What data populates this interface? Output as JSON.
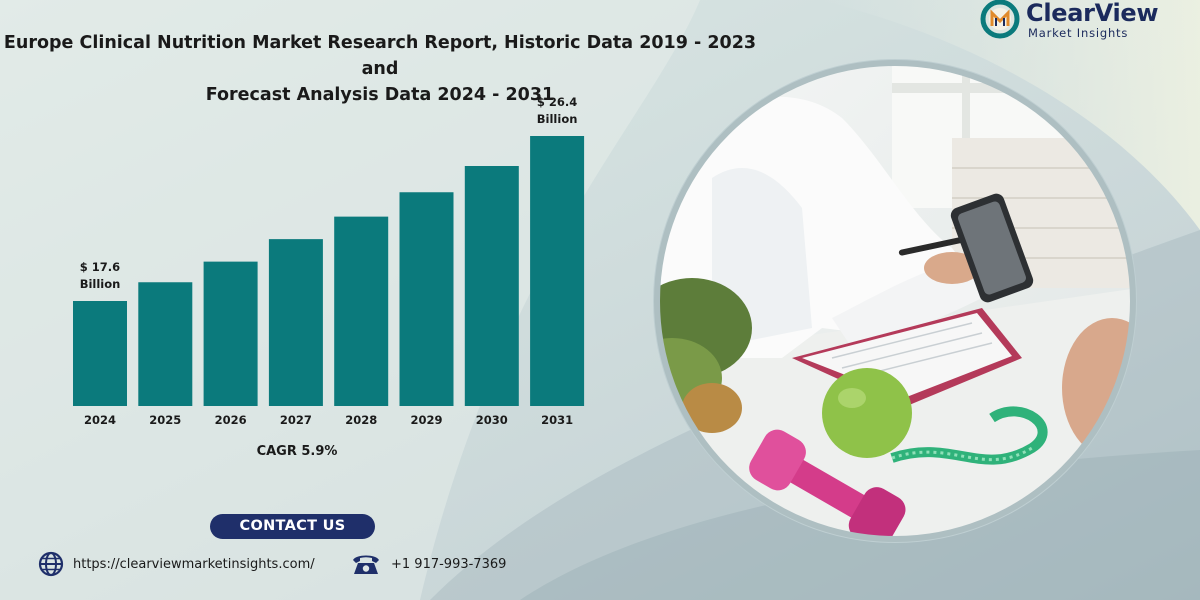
{
  "title": {
    "line1": "Europe Clinical Nutrition Market Research Report, Historic Data 2019 - 2023 and",
    "line2": "Forecast Analysis Data 2024 - 2031"
  },
  "chart_data": {
    "type": "bar",
    "categories": [
      "2024",
      "2025",
      "2026",
      "2027",
      "2028",
      "2029",
      "2030",
      "2031"
    ],
    "values": [
      17.6,
      18.6,
      19.7,
      20.9,
      22.1,
      23.4,
      24.8,
      26.4
    ],
    "unit": "$ Billion",
    "annotations": [
      {
        "category": "2024",
        "line1": "$ 17.6",
        "line2": "Billion"
      },
      {
        "category": "2031",
        "line1": "$ 26.4",
        "line2": "Billion"
      }
    ],
    "bar_color": "#0b7a7c",
    "grid": false,
    "legend": "none"
  },
  "cagr": "CAGR 5.9%",
  "contact": {
    "button_label": "CONTACT US",
    "website": "https://clearviewmarketinsights.com/",
    "phone": "+1 917-993-7369",
    "website_icon": "globe-icon",
    "phone_icon": "telephone-icon"
  },
  "logo": {
    "brand": "ClearView",
    "tagline": "Market Insights",
    "icon": "cm-monogram-icon"
  },
  "colors": {
    "accent": "#0b7a7c",
    "navy": "#1f2f6a",
    "logo_blue": "#1b2a5c"
  }
}
